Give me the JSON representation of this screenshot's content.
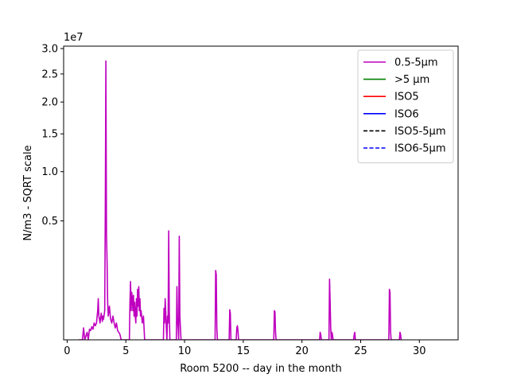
{
  "chart_data": {
    "type": "line",
    "xlabel": "Room 5200 -- day in the month",
    "ylabel": "N/m3 - SQRT scale",
    "y_scale": "sqrt",
    "y_multiplier_label": "1e7",
    "xlim": [
      -0.3,
      33.3
    ],
    "ylim": [
      0,
      3.05
    ],
    "x_ticks": [
      0,
      5,
      10,
      15,
      20,
      25,
      30
    ],
    "x_tick_labels": [
      "0",
      "5",
      "10",
      "15",
      "20",
      "25",
      "30"
    ],
    "y_ticks": [
      0.5,
      1.0,
      1.5,
      2.0,
      2.5,
      3.0
    ],
    "y_tick_labels": [
      "0.5",
      "1.0",
      "1.5",
      "2.0",
      "2.5",
      "3.0"
    ],
    "legend": {
      "position": "top-right"
    },
    "series": [
      {
        "name": "0.5-5µm",
        "color": "#bf00bf",
        "style": "solid",
        "x": [
          1.0,
          1.3,
          1.4,
          1.5,
          1.7,
          1.8,
          1.9,
          2.0,
          2.1,
          2.2,
          2.3,
          2.4,
          2.5,
          2.6,
          2.65,
          2.7,
          2.75,
          2.8,
          2.9,
          3.0,
          3.05,
          3.1,
          3.2,
          3.25,
          3.3,
          3.35,
          3.4,
          3.45,
          3.5,
          3.6,
          3.7,
          3.8,
          3.9,
          4.0,
          4.1,
          4.2,
          4.3,
          4.4,
          4.5,
          4.6,
          5.3,
          5.35,
          5.4,
          5.45,
          5.5,
          5.55,
          5.6,
          5.65,
          5.7,
          5.75,
          5.8,
          5.85,
          5.9,
          5.95,
          6.0,
          6.05,
          6.1,
          6.15,
          6.2,
          6.25,
          6.3,
          6.4,
          6.5,
          6.55,
          6.6,
          8.2,
          8.25,
          8.3,
          8.35,
          8.4,
          8.45,
          8.5,
          8.55,
          8.6,
          8.65,
          8.7,
          8.75,
          9.3,
          9.35,
          9.4,
          9.45,
          9.5,
          9.55,
          9.6,
          9.65,
          9.7,
          12.6,
          12.65,
          12.7,
          12.75,
          12.8,
          13.8,
          13.85,
          13.9,
          13.95,
          14.4,
          14.45,
          14.5,
          14.55,
          14.6,
          17.6,
          17.65,
          17.7,
          17.75,
          17.8,
          21.5,
          21.55,
          21.6,
          21.65,
          22.3,
          22.35,
          22.4,
          22.45,
          22.5,
          22.55,
          22.6,
          22.65,
          24.4,
          24.45,
          24.5,
          24.55,
          27.4,
          27.45,
          27.5,
          27.55,
          27.6,
          28.3,
          28.35,
          28.4,
          28.45
        ],
        "y": [
          0,
          0,
          0.005,
          0,
          0.002,
          0,
          0.004,
          0.003,
          0.006,
          0.004,
          0.01,
          0.007,
          0.01,
          0.03,
          0.06,
          0.02,
          0.015,
          0.01,
          0.025,
          0.012,
          0.02,
          0.015,
          0.03,
          0.6,
          2.75,
          0.4,
          0.22,
          0.05,
          0.02,
          0.04,
          0.015,
          0.01,
          0.02,
          0.01,
          0.005,
          0.01,
          0.003,
          0.002,
          0.001,
          0,
          0,
          0.05,
          0.12,
          0.03,
          0.08,
          0.06,
          0.03,
          0.07,
          0.02,
          0.05,
          0.02,
          0.01,
          0.06,
          0.02,
          0.09,
          0.04,
          0.1,
          0.03,
          0.06,
          0.02,
          0.03,
          0.01,
          0.02,
          0.005,
          0,
          0,
          0.035,
          0.01,
          0.06,
          0.025,
          0.005,
          0,
          0.02,
          0.01,
          0.42,
          0.03,
          0,
          0,
          0.1,
          0.015,
          0.005,
          0,
          0.38,
          0.02,
          0.005,
          0,
          0,
          0.17,
          0.15,
          0.005,
          0,
          0,
          0.032,
          0.025,
          0,
          0,
          0.005,
          0.007,
          0.003,
          0,
          0,
          0.03,
          0.028,
          0.002,
          0,
          0,
          0.002,
          0.001,
          0,
          0,
          0.13,
          0.05,
          0.005,
          0,
          0.002,
          0.001,
          0,
          0,
          0.001,
          0.002,
          0,
          0,
          0.09,
          0.08,
          0.002,
          0,
          0,
          0.002,
          0.001,
          0
        ]
      },
      {
        "name": ">5 µm",
        "color": "#008000",
        "style": "solid",
        "x": [],
        "y": []
      },
      {
        "name": "ISO5",
        "color": "#ff0000",
        "style": "solid",
        "x": [],
        "y": []
      },
      {
        "name": "ISO6",
        "color": "#0000ff",
        "style": "solid",
        "x": [],
        "y": []
      },
      {
        "name": "ISO5-5µm",
        "color": "#000000",
        "style": "dashed",
        "x": [],
        "y": []
      },
      {
        "name": "ISO6-5µm",
        "color": "#0000ff",
        "style": "dashed",
        "x": [],
        "y": []
      }
    ]
  }
}
